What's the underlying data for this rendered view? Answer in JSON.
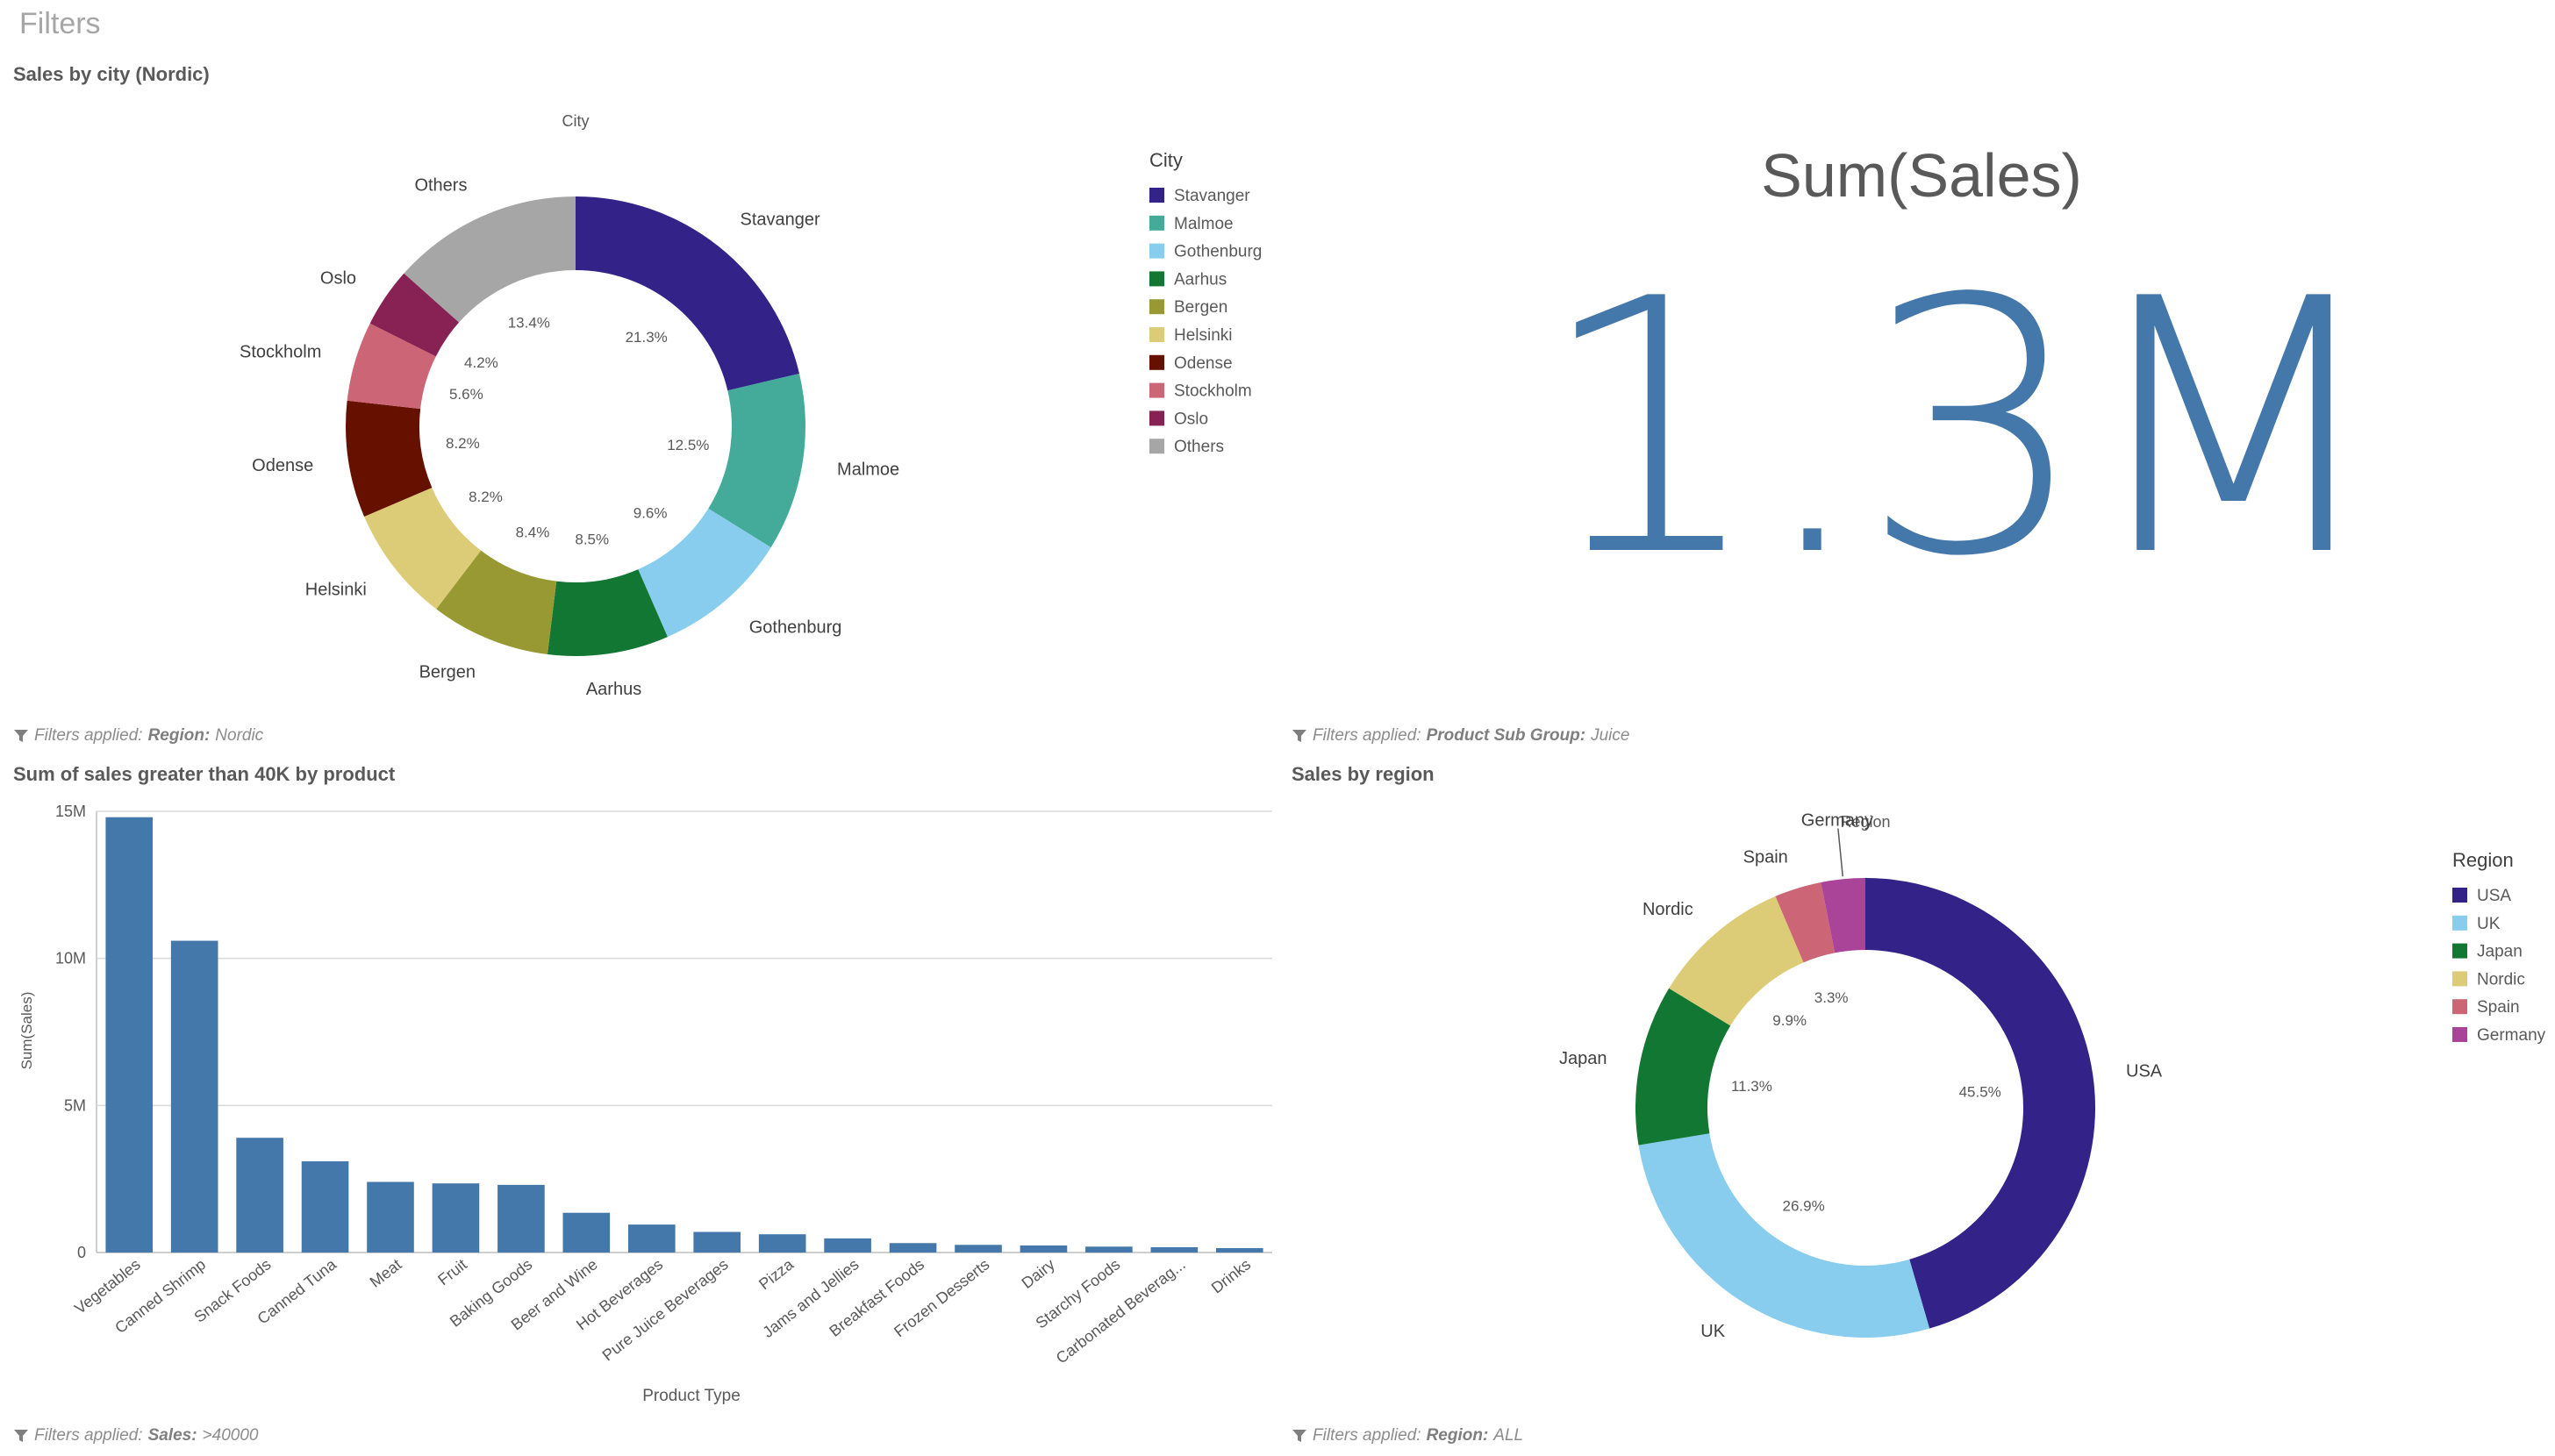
{
  "sheet_title": "Filters",
  "colors": {
    "kpi": "#4477aa",
    "bar": "#4477aa",
    "grid": "#d9d9d9",
    "text": "#595959",
    "muted": "#8c8c8c"
  },
  "panels": {
    "city": {
      "title": "Sales by city (Nordic)",
      "footer_prefix": "Filters applied:",
      "footer_field": "Region:",
      "footer_value": "Nordic"
    },
    "kpi": {
      "title": "Sum(Sales)",
      "value": "1.3M",
      "footer_prefix": "Filters applied:",
      "footer_field": "Product Sub Group:",
      "footer_value": "Juice"
    },
    "product": {
      "title": "Sum of sales greater than 40K by product",
      "footer_prefix": "Filters applied:",
      "footer_field": "Sales:",
      "footer_value": ">40000"
    },
    "region": {
      "title": "Sales by region",
      "footer_prefix": "Filters applied:",
      "footer_field": "Region:",
      "footer_value": "ALL"
    }
  },
  "chart_data": [
    {
      "id": "city",
      "type": "pie",
      "title": "City",
      "legend_title": "City",
      "legend_placement": "right",
      "slices": [
        {
          "label": "Stavanger",
          "value": 21.3,
          "pct": "21.3%",
          "color": "#332288"
        },
        {
          "label": "Malmoe",
          "value": 12.5,
          "pct": "12.5%",
          "color": "#44aa99"
        },
        {
          "label": "Gothenburg",
          "value": 9.6,
          "pct": "9.6%",
          "color": "#88ccee"
        },
        {
          "label": "Aarhus",
          "value": 8.5,
          "pct": "8.5%",
          "color": "#117733"
        },
        {
          "label": "Bergen",
          "value": 8.4,
          "pct": "8.4%",
          "color": "#999933"
        },
        {
          "label": "Helsinki",
          "value": 8.2,
          "pct": "8.2%",
          "color": "#ddcc77"
        },
        {
          "label": "Odense",
          "value": 8.2,
          "pct": "8.2%",
          "color": "#661100"
        },
        {
          "label": "Stockholm",
          "value": 5.6,
          "pct": "5.6%",
          "color": "#cc6677"
        },
        {
          "label": "Oslo",
          "value": 4.2,
          "pct": "4.2%",
          "color": "#882255"
        },
        {
          "label": "Others",
          "value": 13.4,
          "pct": "13.4%",
          "color": "#a6a6a6"
        }
      ]
    },
    {
      "id": "product",
      "type": "bar",
      "xlabel": "Product Type",
      "ylabel": "Sum(Sales)",
      "ylim": [
        0,
        15000000
      ],
      "yticks": [
        {
          "v": 0,
          "label": "0"
        },
        {
          "v": 5000000,
          "label": "5M"
        },
        {
          "v": 10000000,
          "label": "10M"
        },
        {
          "v": 15000000,
          "label": "15M"
        }
      ],
      "grid": true,
      "categories": [
        "Vegetables",
        "Canned Shrimp",
        "Snack Foods",
        "Canned Tuna",
        "Meat",
        "Fruit",
        "Baking Goods",
        "Beer and Wine",
        "Hot Beverages",
        "Pure Juice Beverages",
        "Pizza",
        "Jams and Jellies",
        "Breakfast Foods",
        "Frozen Desserts",
        "Dairy",
        "Starchy Foods",
        "Carbonated Beverag...",
        "Drinks"
      ],
      "values": [
        14800000,
        10600000,
        3900000,
        3100000,
        2400000,
        2350000,
        2300000,
        1350000,
        950000,
        700000,
        620000,
        480000,
        320000,
        260000,
        240000,
        200000,
        180000,
        150000
      ]
    },
    {
      "id": "region",
      "type": "pie",
      "title": "Region",
      "legend_title": "Region",
      "legend_placement": "right",
      "slices": [
        {
          "label": "USA",
          "value": 45.5,
          "pct": "45.5%",
          "color": "#332288"
        },
        {
          "label": "UK",
          "value": 26.9,
          "pct": "26.9%",
          "color": "#88ccee"
        },
        {
          "label": "Japan",
          "value": 11.3,
          "pct": "11.3%",
          "color": "#117733"
        },
        {
          "label": "Nordic",
          "value": 9.9,
          "pct": "9.9%",
          "color": "#ddcc77"
        },
        {
          "label": "Spain",
          "value": 3.3,
          "pct": "3.3%",
          "color": "#cc6677"
        },
        {
          "label": "Germany",
          "value": 3.1,
          "pct": "",
          "color": "#aa4499"
        }
      ]
    }
  ]
}
